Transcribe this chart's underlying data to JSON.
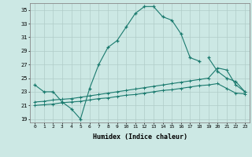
{
  "xlabel": "Humidex (Indice chaleur)",
  "background_color": "#cce8e4",
  "grid_color": "#b0ccc8",
  "line_color": "#1a7a6e",
  "xlim": [
    -0.5,
    23.5
  ],
  "ylim": [
    18.5,
    36.0
  ],
  "xticks": [
    0,
    1,
    2,
    3,
    4,
    5,
    6,
    7,
    8,
    9,
    10,
    11,
    12,
    13,
    14,
    15,
    16,
    17,
    18,
    19,
    20,
    21,
    22,
    23
  ],
  "yticks": [
    19,
    21,
    23,
    25,
    27,
    29,
    31,
    33,
    35
  ],
  "line1_x": [
    0,
    1,
    2,
    3,
    4,
    5,
    6,
    7,
    8,
    9,
    10,
    11,
    12,
    13,
    14,
    15,
    16,
    17,
    18
  ],
  "line1_y": [
    24.0,
    23.0,
    23.0,
    21.5,
    20.5,
    19.0,
    23.5,
    27.0,
    29.5,
    30.5,
    32.5,
    34.5,
    35.5,
    35.5,
    34.0,
    33.5,
    31.5,
    28.0,
    27.5
  ],
  "line2_x": [
    19,
    20,
    21,
    22,
    23
  ],
  "line2_y": [
    28.0,
    26.0,
    25.0,
    24.5,
    23.0
  ],
  "line3_x": [
    0,
    1,
    2,
    3,
    4,
    5,
    6,
    7,
    8,
    9,
    10,
    11,
    12,
    13,
    14,
    15,
    16,
    17,
    18,
    19,
    20,
    21,
    22,
    23
  ],
  "line3_y": [
    21.5,
    21.6,
    21.8,
    21.9,
    22.0,
    22.2,
    22.4,
    22.6,
    22.8,
    23.0,
    23.2,
    23.4,
    23.6,
    23.8,
    24.0,
    24.2,
    24.4,
    24.6,
    24.8,
    25.0,
    26.5,
    26.2,
    24.0,
    23.0
  ],
  "line4_x": [
    0,
    1,
    2,
    3,
    4,
    5,
    6,
    7,
    8,
    9,
    10,
    11,
    12,
    13,
    14,
    15,
    16,
    17,
    18,
    19,
    20,
    21,
    22,
    23
  ],
  "line4_y": [
    21.0,
    21.1,
    21.2,
    21.4,
    21.5,
    21.6,
    21.8,
    22.0,
    22.1,
    22.3,
    22.5,
    22.6,
    22.8,
    23.0,
    23.2,
    23.3,
    23.5,
    23.7,
    23.9,
    24.0,
    24.2,
    23.5,
    22.8,
    22.7
  ]
}
